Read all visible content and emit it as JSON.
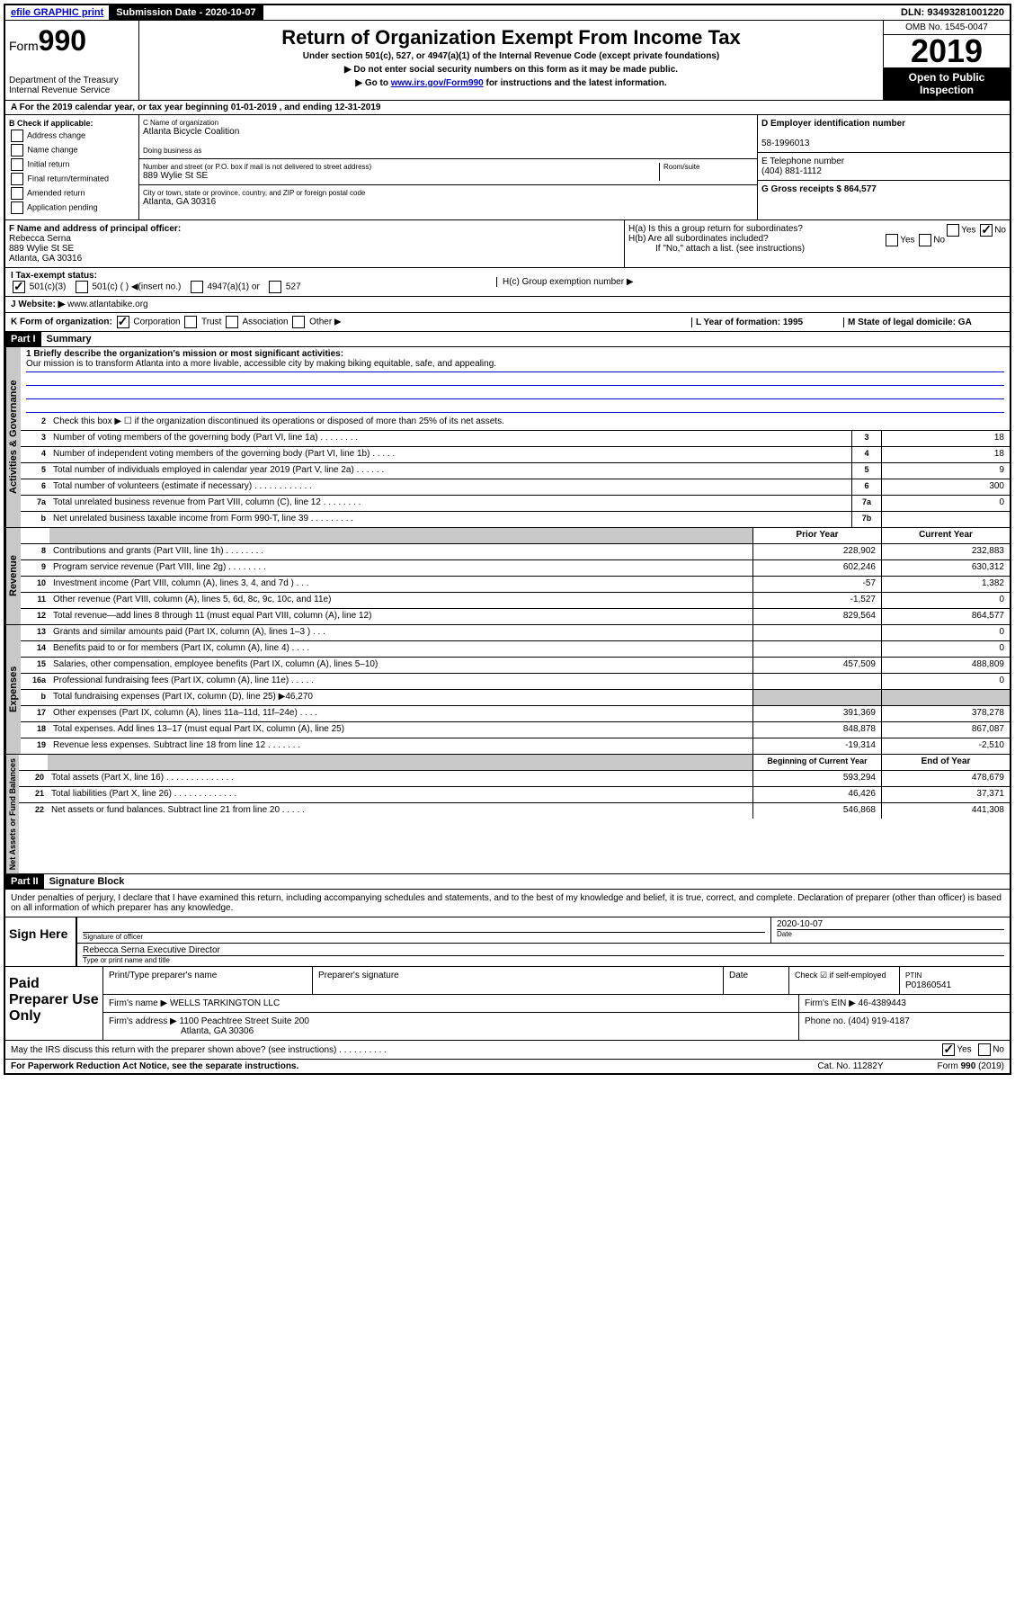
{
  "top": {
    "efile": "efile GRAPHIC print",
    "submission_label": "Submission Date - 2020-10-07",
    "dln": "DLN: 93493281001220"
  },
  "header": {
    "form_label": "Form",
    "form_num": "990",
    "dept1": "Department of the Treasury",
    "dept2": "Internal Revenue Service",
    "title": "Return of Organization Exempt From Income Tax",
    "subtitle": "Under section 501(c), 527, or 4947(a)(1) of the Internal Revenue Code (except private foundations)",
    "note1": "▶ Do not enter social security numbers on this form as it may be made public.",
    "note2_pre": "▶ Go to ",
    "note2_link": "www.irs.gov/Form990",
    "note2_post": " for instructions and the latest information.",
    "omb": "OMB No. 1545-0047",
    "year": "2019",
    "inspection": "Open to Public Inspection"
  },
  "rowA": "A   For the 2019 calendar year, or tax year beginning 01-01-2019     , and ending 12-31-2019",
  "boxB": {
    "label": "B Check if applicable:",
    "items": [
      "Address change",
      "Name change",
      "Initial return",
      "Final return/terminated",
      "Amended return",
      "Application pending"
    ]
  },
  "boxC": {
    "name_label": "C Name of organization",
    "name": "Atlanta Bicycle Coalition",
    "dba_label": "Doing business as",
    "addr_label": "Number and street (or P.O. box if mail is not delivered to street address)",
    "room_label": "Room/suite",
    "addr": "889 Wylie St SE",
    "city_label": "City or town, state or province, country, and ZIP or foreign postal code",
    "city": "Atlanta, GA  30316"
  },
  "boxD": {
    "label": "D Employer identification number",
    "ein": "58-1996013"
  },
  "boxE": {
    "label": "E Telephone number",
    "phone": "(404) 881-1112"
  },
  "boxG": {
    "label": "G Gross receipts $ 864,577"
  },
  "boxF": {
    "label": "F  Name and address of principal officer:",
    "name": "Rebecca Serna",
    "addr1": "889 Wylie St SE",
    "addr2": "Atlanta, GA  30316"
  },
  "boxH": {
    "ha": "H(a)  Is this a group return for subordinates?",
    "hb": "H(b)  Are all subordinates included?",
    "hb_note": "If \"No,\" attach a list. (see instructions)",
    "hc": "H(c)  Group exemption number ▶"
  },
  "rowI": {
    "label": "I  Tax-exempt status:",
    "opts": [
      "501(c)(3)",
      "501(c) (  ) ◀(insert no.)",
      "4947(a)(1) or",
      "527"
    ]
  },
  "rowJ": {
    "label": "J  Website: ▶",
    "url": "www.atlantabike.org"
  },
  "rowK": {
    "label": "K Form of organization:",
    "opts": [
      "Corporation",
      "Trust",
      "Association",
      "Other ▶"
    ],
    "l_label": "L Year of formation: 1995",
    "m_label": "M State of legal domicile: GA"
  },
  "part1": {
    "label": "Part I",
    "title": "Summary"
  },
  "governance": {
    "vert": "Activities & Governance",
    "mission_label": "1  Briefly describe the organization's mission or most significant activities:",
    "mission": "Our mission is to transform Atlanta into a more livable, accessible city by making biking equitable, safe, and appealing.",
    "line2": "Check this box ▶ ☐  if the organization discontinued its operations or disposed of more than 25% of its net assets.",
    "rows": [
      {
        "n": "3",
        "label": "Number of voting members of the governing body (Part VI, line 1a)  .    .    .    .    .    .    .    .",
        "cell": "3",
        "val": "18"
      },
      {
        "n": "4",
        "label": "Number of independent voting members of the governing body (Part VI, line 1b)  .    .    .    .    .",
        "cell": "4",
        "val": "18"
      },
      {
        "n": "5",
        "label": "Total number of individuals employed in calendar year 2019 (Part V, line 2a)  .    .    .    .    .    .",
        "cell": "5",
        "val": "9"
      },
      {
        "n": "6",
        "label": "Total number of volunteers (estimate if necessary)  .    .    .    .    .    .    .    .    .    .    .    .",
        "cell": "6",
        "val": "300"
      },
      {
        "n": "7a",
        "label": "Total unrelated business revenue from Part VIII, column (C), line 12  .    .    .    .    .    .    .    .",
        "cell": "7a",
        "val": "0"
      },
      {
        "n": "b",
        "label": "Net unrelated business taxable income from Form 990-T, line 39  .    .    .    .    .    .    .    .    .",
        "cell": "7b",
        "val": ""
      }
    ]
  },
  "revenue": {
    "vert": "Revenue",
    "header_prior": "Prior Year",
    "header_current": "Current Year",
    "rows": [
      {
        "n": "8",
        "label": "Contributions and grants (Part VIII, line 1h)  .    .    .    .    .    .    .    .",
        "prior": "228,902",
        "curr": "232,883"
      },
      {
        "n": "9",
        "label": "Program service revenue (Part VIII, line 2g)  .    .    .    .    .    .    .    .",
        "prior": "602,246",
        "curr": "630,312"
      },
      {
        "n": "10",
        "label": "Investment income (Part VIII, column (A), lines 3, 4, and 7d )  .    .    .",
        "prior": "-57",
        "curr": "1,382"
      },
      {
        "n": "11",
        "label": "Other revenue (Part VIII, column (A), lines 5, 6d, 8c, 9c, 10c, and 11e)",
        "prior": "-1,527",
        "curr": "0"
      },
      {
        "n": "12",
        "label": "Total revenue—add lines 8 through 11 (must equal Part VIII, column (A), line 12)",
        "prior": "829,564",
        "curr": "864,577"
      }
    ]
  },
  "expenses": {
    "vert": "Expenses",
    "rows": [
      {
        "n": "13",
        "label": "Grants and similar amounts paid (Part IX, column (A), lines 1–3 )  .    .    .",
        "prior": "",
        "curr": "0"
      },
      {
        "n": "14",
        "label": "Benefits paid to or for members (Part IX, column (A), line 4)  .    .    .    .",
        "prior": "",
        "curr": "0"
      },
      {
        "n": "15",
        "label": "Salaries, other compensation, employee benefits (Part IX, column (A), lines 5–10)",
        "prior": "457,509",
        "curr": "488,809"
      },
      {
        "n": "16a",
        "label": "Professional fundraising fees (Part IX, column (A), line 11e)  .    .    .    .    .",
        "prior": "",
        "curr": "0"
      },
      {
        "n": "b",
        "label": "Total fundraising expenses (Part IX, column (D), line 25) ▶46,270",
        "prior": "grey",
        "curr": "grey"
      },
      {
        "n": "17",
        "label": "Other expenses (Part IX, column (A), lines 11a–11d, 11f–24e)  .    .    .    .",
        "prior": "391,369",
        "curr": "378,278"
      },
      {
        "n": "18",
        "label": "Total expenses. Add lines 13–17 (must equal Part IX, column (A), line 25)",
        "prior": "848,878",
        "curr": "867,087"
      },
      {
        "n": "19",
        "label": "Revenue less expenses. Subtract line 18 from line 12  .    .    .    .    .    .    .",
        "prior": "-19,314",
        "curr": "-2,510"
      }
    ]
  },
  "netassets": {
    "vert": "Net Assets or Fund Balances",
    "header_prior": "Beginning of Current Year",
    "header_current": "End of Year",
    "rows": [
      {
        "n": "20",
        "label": "Total assets (Part X, line 16)  .    .    .    .    .    .    .    .    .    .    .    .    .    .",
        "prior": "593,294",
        "curr": "478,679"
      },
      {
        "n": "21",
        "label": "Total liabilities (Part X, line 26)  .    .    .    .    .    .    .    .    .    .    .    .    .",
        "prior": "46,426",
        "curr": "37,371"
      },
      {
        "n": "22",
        "label": "Net assets or fund balances. Subtract line 21 from line 20  .    .    .    .    .",
        "prior": "546,868",
        "curr": "441,308"
      }
    ]
  },
  "part2": {
    "label": "Part II",
    "title": "Signature Block",
    "perjury": "Under penalties of perjury, I declare that I have examined this return, including accompanying schedules and statements, and to the best of my knowledge and belief, it is true, correct, and complete. Declaration of preparer (other than officer) is based on all information of which preparer has any knowledge."
  },
  "sign": {
    "label": "Sign Here",
    "sig_label": "Signature of officer",
    "date": "2020-10-07",
    "date_label": "Date",
    "name": "Rebecca Serna  Executive Director",
    "name_label": "Type or print name and title"
  },
  "preparer": {
    "label": "Paid Preparer Use Only",
    "h1": "Print/Type preparer's name",
    "h2": "Preparer's signature",
    "h3": "Date",
    "h4_label": "Check ☑ if self-employed",
    "h5_label": "PTIN",
    "ptin": "P01860541",
    "firm_name_label": "Firm's name    ▶",
    "firm_name": "WELLS TARKINGTON LLC",
    "firm_ein_label": "Firm's EIN ▶",
    "firm_ein": "46-4389443",
    "firm_addr_label": "Firm's address ▶",
    "firm_addr1": "1100 Peachtree Street Suite 200",
    "firm_addr2": "Atlanta, GA  30306",
    "phone_label": "Phone no.",
    "phone": "(404) 919-4187"
  },
  "discuss": "May the IRS discuss this return with the preparer shown above? (see instructions)  .    .    .    .    .    .    .    .    .    .",
  "footer": {
    "left": "For Paperwork Reduction Act Notice, see the separate instructions.",
    "mid": "Cat. No. 11282Y",
    "right": "Form 990 (2019)"
  }
}
